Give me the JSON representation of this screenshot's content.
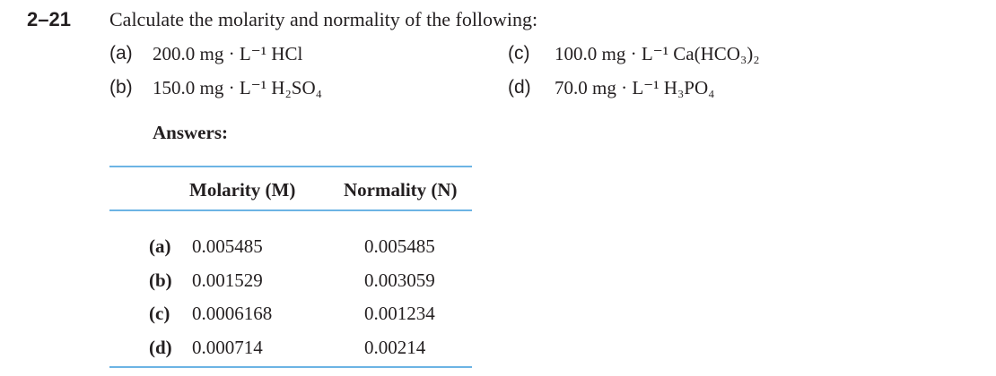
{
  "problem": {
    "number": "2–21",
    "prompt": "Calculate the molarity and normality of the following:",
    "items": [
      {
        "label": "(a)",
        "text": "200.0 mg · L⁻¹ HCl"
      },
      {
        "label": "(b)",
        "text": "150.0 mg · L⁻¹ H₂SO₄"
      },
      {
        "label": "(c)",
        "text": "100.0 mg · L⁻¹ Ca(HCO₃)₂"
      },
      {
        "label": "(d)",
        "text": "70.0 mg · L⁻¹ H₃PO₄"
      }
    ]
  },
  "answers": {
    "title": "Answers:",
    "table": {
      "header": [
        "Molarity (M)",
        "Normality (N)"
      ],
      "rows": [
        [
          "(a)",
          "0.005485",
          "0.005485"
        ],
        [
          "(b)",
          "0.001529",
          "0.003059"
        ],
        [
          "(c)",
          "0.0006168",
          "0.001234"
        ],
        [
          "(d)",
          "0.000714",
          "0.00214"
        ]
      ]
    }
  }
}
